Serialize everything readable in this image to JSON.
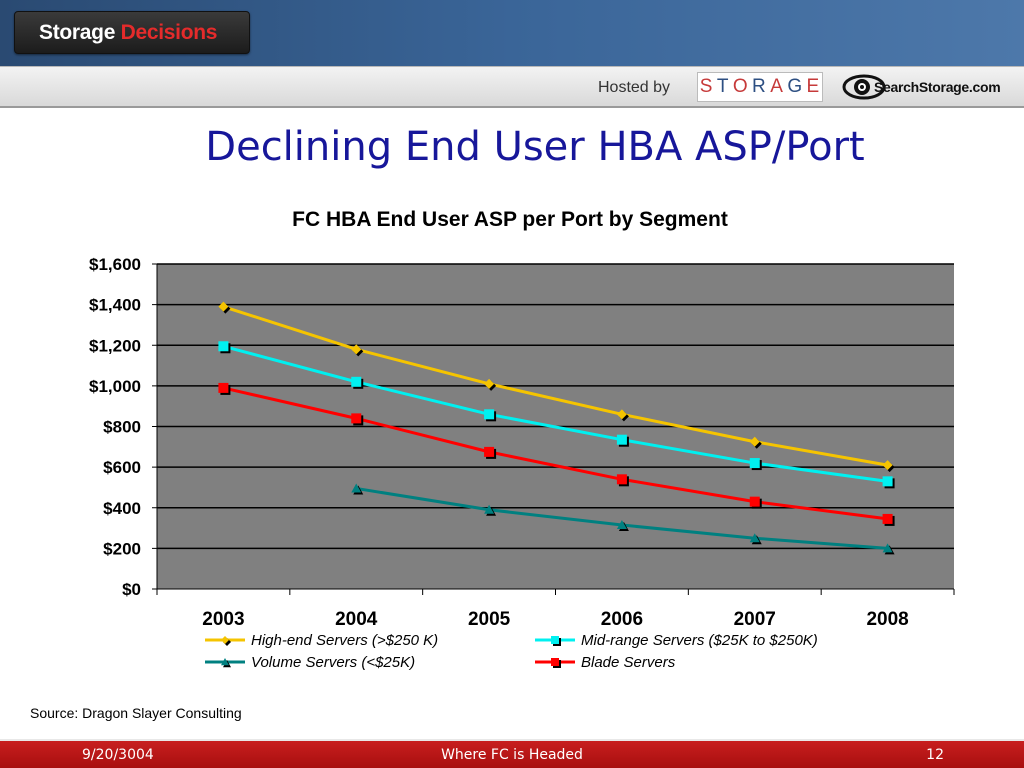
{
  "header": {
    "logo_word1": "Storage",
    "logo_word2": "Decisions",
    "hosted_by": "Hosted by",
    "storage_letters": [
      "S",
      "T",
      "O",
      "R",
      "A",
      "G",
      "E"
    ],
    "searchstorage": "SearchStorage.com"
  },
  "slide": {
    "title": "Declining End User HBA ASP/Port",
    "source": "Source: Dragon Slayer Consulting"
  },
  "footer": {
    "date": "9/20/3004",
    "center": "Where FC is Headed",
    "page": "12"
  },
  "colors": {
    "plot_bg": "#808080",
    "title_blue": "#17179a",
    "footer_red": "#b81717"
  },
  "chart_data": {
    "type": "line",
    "title": "FC HBA End User ASP per Port by Segment",
    "xlabel": "",
    "ylabel": "",
    "categories": [
      "2003",
      "2004",
      "2005",
      "2006",
      "2007",
      "2008"
    ],
    "ylim": [
      0,
      1600
    ],
    "yticks": [
      0,
      200,
      400,
      600,
      800,
      1000,
      1200,
      1400,
      1600
    ],
    "ytick_labels": [
      "$0",
      "$200",
      "$400",
      "$600",
      "$800",
      "$1,000",
      "$1,200",
      "$1,400",
      "$1,600"
    ],
    "grid": true,
    "legend_position": "bottom",
    "series": [
      {
        "name": "High-end Servers (>$250 K)",
        "color": "#f5c400",
        "marker": "diamond",
        "values": [
          1390,
          1180,
          1010,
          860,
          725,
          610
        ]
      },
      {
        "name": "Mid-range Servers ($25K to $250K)",
        "color": "#00f0f0",
        "marker": "square",
        "values": [
          1195,
          1020,
          860,
          735,
          620,
          530
        ]
      },
      {
        "name": "Volume Servers (<$25K)",
        "color": "#008080",
        "marker": "triangle",
        "values": [
          null,
          495,
          390,
          315,
          250,
          200
        ]
      },
      {
        "name": "Blade Servers",
        "color": "#ff0000",
        "marker": "square",
        "values": [
          990,
          840,
          675,
          540,
          430,
          345
        ]
      }
    ]
  }
}
